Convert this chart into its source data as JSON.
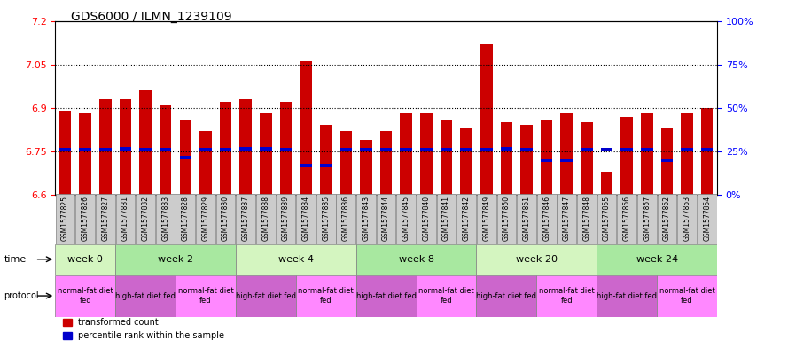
{
  "title": "GDS6000 / ILMN_1239109",
  "samples": [
    "GSM1577825",
    "GSM1577826",
    "GSM1577827",
    "GSM1577831",
    "GSM1577832",
    "GSM1577833",
    "GSM1577828",
    "GSM1577829",
    "GSM1577830",
    "GSM1577837",
    "GSM1577838",
    "GSM1577839",
    "GSM1577834",
    "GSM1577835",
    "GSM1577836",
    "GSM1577843",
    "GSM1577844",
    "GSM1577845",
    "GSM1577840",
    "GSM1577841",
    "GSM1577842",
    "GSM1577849",
    "GSM1577850",
    "GSM1577851",
    "GSM1577846",
    "GSM1577847",
    "GSM1577848",
    "GSM1577855",
    "GSM1577856",
    "GSM1577857",
    "GSM1577852",
    "GSM1577853",
    "GSM1577854"
  ],
  "bar_values": [
    6.89,
    6.88,
    6.93,
    6.93,
    6.96,
    6.91,
    6.86,
    6.82,
    6.92,
    6.93,
    6.88,
    6.92,
    7.06,
    6.84,
    6.82,
    6.79,
    6.82,
    6.88,
    6.88,
    6.86,
    6.83,
    7.12,
    6.85,
    6.84,
    6.86,
    6.88,
    6.85,
    6.68,
    6.87,
    6.88,
    6.83,
    6.88,
    6.9
  ],
  "percentile_values": [
    6.755,
    6.755,
    6.755,
    6.76,
    6.755,
    6.755,
    6.73,
    6.755,
    6.755,
    6.76,
    6.76,
    6.755,
    6.7,
    6.7,
    6.755,
    6.755,
    6.755,
    6.755,
    6.755,
    6.755,
    6.755,
    6.755,
    6.76,
    6.755,
    6.72,
    6.72,
    6.755,
    6.755,
    6.755,
    6.755,
    6.72,
    6.755,
    6.755
  ],
  "time_groups": [
    {
      "label": "week 0",
      "start": 0,
      "end": 3,
      "color": "#d4f5c0"
    },
    {
      "label": "week 2",
      "start": 3,
      "end": 9,
      "color": "#a8e8a0"
    },
    {
      "label": "week 4",
      "start": 9,
      "end": 15,
      "color": "#d4f5c0"
    },
    {
      "label": "week 8",
      "start": 15,
      "end": 21,
      "color": "#a8e8a0"
    },
    {
      "label": "week 20",
      "start": 21,
      "end": 27,
      "color": "#d4f5c0"
    },
    {
      "label": "week 24",
      "start": 27,
      "end": 33,
      "color": "#a8e8a0"
    }
  ],
  "protocol_groups": [
    {
      "label": "normal-fat diet\nfed",
      "start": 0,
      "end": 3,
      "color": "#ff88ff"
    },
    {
      "label": "high-fat diet fed",
      "start": 3,
      "end": 6,
      "color": "#cc66cc"
    },
    {
      "label": "normal-fat diet\nfed",
      "start": 6,
      "end": 9,
      "color": "#ff88ff"
    },
    {
      "label": "high-fat diet fed",
      "start": 9,
      "end": 12,
      "color": "#cc66cc"
    },
    {
      "label": "normal-fat diet\nfed",
      "start": 12,
      "end": 15,
      "color": "#ff88ff"
    },
    {
      "label": "high-fat diet fed",
      "start": 15,
      "end": 18,
      "color": "#cc66cc"
    },
    {
      "label": "normal-fat diet\nfed",
      "start": 18,
      "end": 21,
      "color": "#ff88ff"
    },
    {
      "label": "high-fat diet fed",
      "start": 21,
      "end": 24,
      "color": "#cc66cc"
    },
    {
      "label": "normal-fat diet\nfed",
      "start": 24,
      "end": 27,
      "color": "#ff88ff"
    },
    {
      "label": "high-fat diet fed",
      "start": 27,
      "end": 30,
      "color": "#cc66cc"
    },
    {
      "label": "normal-fat diet\nfed",
      "start": 30,
      "end": 33,
      "color": "#ff88ff"
    }
  ],
  "y_min": 6.6,
  "y_max": 7.2,
  "y_ticks_left": [
    6.6,
    6.75,
    6.9,
    7.05,
    7.2
  ],
  "y_ticks_right": [
    0,
    25,
    50,
    75,
    100
  ],
  "bar_color": "#cc0000",
  "percentile_color": "#0000cc",
  "bar_bottom": 6.6
}
